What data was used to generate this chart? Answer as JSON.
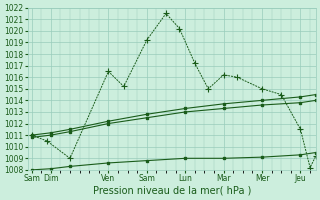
{
  "title": "Pression niveau de la mer( hPa )",
  "bg_color": "#cceedd",
  "grid_color": "#99ccbb",
  "line_color": "#1a5c1a",
  "ylim": [
    1008,
    1022
  ],
  "ytick_min": 1008,
  "ytick_max": 1022,
  "xlabels": [
    "Sam",
    "Dim",
    "Ven",
    "Sam",
    "Lun",
    "Mar",
    "Mer",
    "Jeu"
  ],
  "xtick_positions": [
    0,
    0.5,
    2,
    3,
    4,
    5,
    6,
    7
  ],
  "xmin": -0.1,
  "xmax": 7.4,
  "line1_x": [
    0.0,
    0.4,
    1.0,
    2.0,
    2.4,
    3.0,
    3.5,
    3.85,
    4.25,
    4.6,
    5.0,
    5.35,
    6.0,
    6.5,
    7.0,
    7.25,
    7.4
  ],
  "line1_y": [
    1011.0,
    1010.5,
    1009.0,
    1016.5,
    1015.2,
    1019.2,
    1021.5,
    1020.2,
    1017.2,
    1015.0,
    1016.2,
    1016.0,
    1015.0,
    1014.5,
    1011.5,
    1008.2,
    1009.2
  ],
  "line2_x": [
    0.0,
    0.5,
    1.0,
    2.0,
    3.0,
    4.0,
    5.0,
    6.0,
    7.0,
    7.4
  ],
  "line2_y": [
    1011.0,
    1011.2,
    1011.5,
    1012.2,
    1012.8,
    1013.3,
    1013.7,
    1014.0,
    1014.3,
    1014.5
  ],
  "line3_x": [
    0.0,
    0.5,
    1.0,
    2.0,
    3.0,
    4.0,
    5.0,
    6.0,
    7.0,
    7.4
  ],
  "line3_y": [
    1010.8,
    1011.0,
    1011.3,
    1012.0,
    1012.5,
    1013.0,
    1013.3,
    1013.6,
    1013.8,
    1014.0
  ],
  "line4_x": [
    0.0,
    0.5,
    1.0,
    2.0,
    3.0,
    4.0,
    5.0,
    6.0,
    7.0,
    7.4
  ],
  "line4_y": [
    1008.0,
    1008.1,
    1008.3,
    1008.6,
    1008.8,
    1009.0,
    1009.0,
    1009.1,
    1009.3,
    1009.5
  ],
  "marker_size": 2.5,
  "tick_fontsize": 5.5,
  "label_fontsize": 7
}
